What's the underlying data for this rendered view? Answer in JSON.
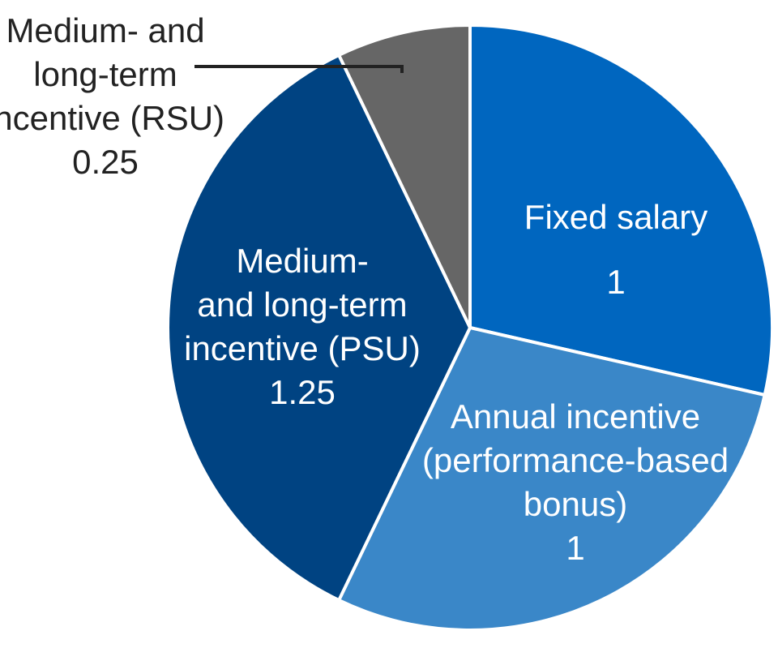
{
  "chart_data": {
    "type": "pie",
    "slices": [
      {
        "name": "Fixed salary",
        "value": 1,
        "value_label": "1",
        "label_lines": [
          "Fixed salary"
        ],
        "color": "#0066bf",
        "label_placement": "inside"
      },
      {
        "name": "Annual incentive (performance-based bonus)",
        "value": 1,
        "value_label": "1",
        "label_lines": [
          "Annual incentive",
          "(performance-based",
          "bonus)"
        ],
        "color": "#3a87c8",
        "label_placement": "inside"
      },
      {
        "name": "Medium- and long-term incentive (PSU)",
        "value": 1.25,
        "value_label": "1.25",
        "label_lines": [
          "Medium-",
          "and long-term",
          "incentive (PSU)"
        ],
        "color": "#004382",
        "label_placement": "inside"
      },
      {
        "name": "Medium- and long-term incentive (RSU)",
        "value": 0.25,
        "value_label": "0.25",
        "label_lines": [
          "Medium- and",
          "long-term",
          "incentive (RSU)"
        ],
        "color": "#666666",
        "label_placement": "outside-left"
      }
    ],
    "start_angle": "12 o'clock",
    "direction": "clockwise",
    "slice_border_color": "#ffffff",
    "leader_line_color": "#222222"
  }
}
